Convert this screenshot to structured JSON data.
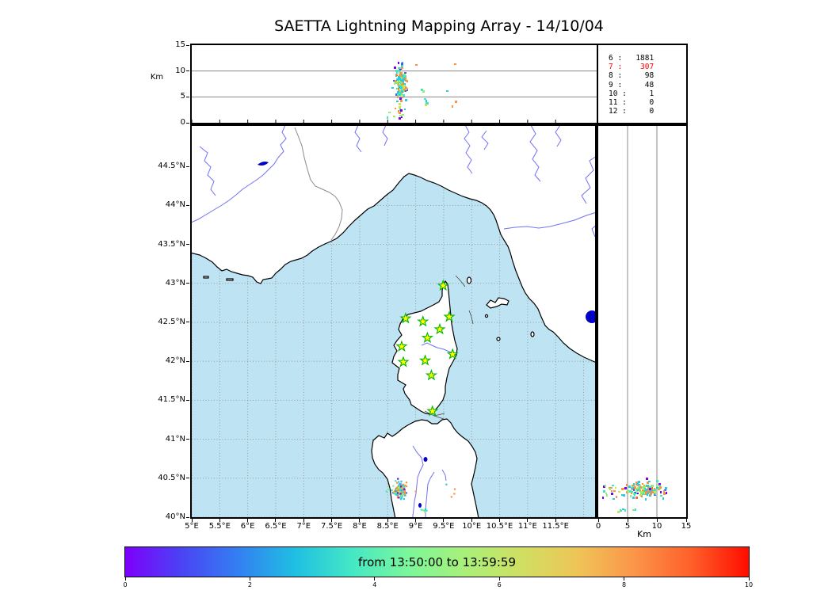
{
  "title": "SAETTA Lightning Mapping Array - 14/10/04",
  "colors": {
    "sea": "#BEE4F4",
    "land": "#FFFFFF",
    "coast": "#000000",
    "river": "#7171F5",
    "lake": "#0000C8",
    "grid_dotted": "#999999",
    "panel_grid": "#888888",
    "admin_border": "#8A8A8A",
    "station_fill": "#FFFF00",
    "station_stroke": "#00B400",
    "stats_highlight": "#FF0000",
    "text": "#000000"
  },
  "altitude_axis": {
    "label": "Km",
    "ticks": [
      "0",
      "5",
      "10",
      "15"
    ],
    "max_km": 15
  },
  "stats_panel": {
    "rows": [
      {
        "level": "6",
        "value": "1881",
        "text": "6 :   1881",
        "highlight": false
      },
      {
        "level": "7",
        "value": "307",
        "text": "7 :    307",
        "highlight": true
      },
      {
        "level": "8",
        "value": "98",
        "text": "8 :     98",
        "highlight": false
      },
      {
        "level": "9",
        "value": "48",
        "text": "9 :     48",
        "highlight": false
      },
      {
        "level": "10",
        "value": "1",
        "text": "10 :     1",
        "highlight": false
      },
      {
        "level": "11",
        "value": "0",
        "text": "11 :     0",
        "highlight": false
      },
      {
        "level": "12",
        "value": "0",
        "text": "12 :     0",
        "highlight": false
      }
    ]
  },
  "map_panel": {
    "lat_tick_labels": [
      "44.5°N",
      "44°N",
      "43.5°N",
      "43°N",
      "42.5°N",
      "42°N",
      "41.5°N",
      "41°N",
      "40.5°N",
      "40°N"
    ],
    "lat_tick_values": [
      44.5,
      44,
      43.5,
      43,
      42.5,
      42,
      41.5,
      41,
      40.5,
      40
    ],
    "lon_tick_labels": [
      "5°E",
      "5.5°E",
      "6°E",
      "6.5°E",
      "7°E",
      "7.5°E",
      "8°E",
      "8.5°E",
      "9°E",
      "9.5°E",
      "10°E",
      "10.5°E",
      "11°E",
      "11.5°E"
    ],
    "lon_tick_values": [
      5,
      5.5,
      6,
      6.5,
      7,
      7.5,
      8,
      8.5,
      9,
      9.5,
      10,
      10.5,
      11,
      11.5
    ],
    "lon_range": [
      5,
      12.205
    ],
    "lat_range": [
      40,
      45.02
    ]
  },
  "right_panel": {
    "tick_labels": [
      "0",
      "5",
      "10",
      "15"
    ],
    "tick_values": [
      0,
      5,
      10,
      15
    ],
    "label": "Km"
  },
  "colorbar": {
    "label": "from 13:50:00 to 13:59:59",
    "tick_labels": [
      "0",
      "2",
      "4",
      "6",
      "8",
      "10"
    ],
    "tick_values": [
      0,
      2,
      4,
      6,
      8,
      10
    ],
    "range": [
      0,
      10
    ],
    "gradient": [
      "#7D00FB",
      "#4A44F4",
      "#3380F2",
      "#1FC0E2",
      "#45E8C5",
      "#7CF69A",
      "#A9F07A",
      "#D0DF62",
      "#EFC457",
      "#FB9449",
      "#FE5F29",
      "#FF0C00"
    ]
  },
  "chart_data": [
    {
      "type": "scatter",
      "name": "altitude_vs_longitude",
      "ylabel": "Km",
      "x_range": [
        5,
        12.205
      ],
      "y_range": [
        0,
        15
      ],
      "y_tick_labels": [
        "0",
        "5",
        "10",
        "15"
      ],
      "gridlines_km": [
        5,
        10
      ],
      "note": "VHF source altitudes vs longitude; dense cluster near 8.7°E between 5 and 10 km"
    },
    {
      "type": "scatter",
      "name": "plan_view_map",
      "x_range": [
        5,
        12.205
      ],
      "y_range": [
        40,
        45.02
      ],
      "x_tick_labels": [
        "5°E",
        "5.5°E",
        "6°E",
        "6.5°E",
        "7°E",
        "7.5°E",
        "8°E",
        "8.5°E",
        "9°E",
        "9.5°E",
        "10°E",
        "10.5°E",
        "11°E",
        "11.5°E"
      ],
      "y_tick_labels": [
        "44.5°N",
        "44°N",
        "43.5°N",
        "43°N",
        "42.5°N",
        "42°N",
        "41.5°N",
        "41°N",
        "40.5°N",
        "40°N"
      ],
      "stations_lon_lat": [
        [
          9.49,
          42.97
        ],
        [
          8.82,
          42.55
        ],
        [
          9.13,
          42.51
        ],
        [
          9.6,
          42.57
        ],
        [
          9.43,
          42.41
        ],
        [
          9.21,
          42.3
        ],
        [
          8.75,
          42.19
        ],
        [
          9.66,
          42.09
        ],
        [
          8.78,
          41.99
        ],
        [
          9.17,
          42.01
        ],
        [
          9.28,
          41.82
        ],
        [
          9.3,
          41.36
        ]
      ],
      "flash_cluster": {
        "lon": 8.72,
        "lat": 40.35,
        "alt_km_range": [
          0.5,
          12
        ]
      }
    },
    {
      "type": "scatter",
      "name": "latitude_vs_altitude",
      "xlabel": "Km",
      "x_range": [
        0,
        15
      ],
      "y_range": [
        40,
        45.02
      ],
      "x_tick_labels": [
        "0",
        "5",
        "10",
        "15"
      ],
      "gridlines_km": [
        5,
        10
      ]
    },
    {
      "type": "table",
      "name": "source_counts",
      "pairs": [
        [
          "6",
          1881
        ],
        [
          "7",
          307
        ],
        [
          "8",
          98
        ],
        [
          "9",
          48
        ],
        [
          "10",
          1
        ],
        [
          "11",
          0
        ],
        [
          "12",
          0
        ]
      ],
      "highlight_row": "7"
    },
    {
      "type": "colorbar",
      "label": "from 13:50:00 to 13:59:59",
      "range": [
        0,
        10
      ],
      "tick_labels": [
        "0",
        "2",
        "4",
        "6",
        "8",
        "10"
      ]
    }
  ],
  "sources": {
    "seed": 20141004,
    "palette": [
      "#7B00F7",
      "#3E63F7",
      "#2BC8E3",
      "#3BE8C0",
      "#8DF06A",
      "#C8E84A",
      "#FB9240",
      "#FD6B28"
    ],
    "palette_weights": [
      0.06,
      0.04,
      0.24,
      0.13,
      0.2,
      0.05,
      0.22,
      0.06
    ],
    "clusters": [
      {
        "n": 150,
        "lon_mu": 8.72,
        "lon_sd": 0.05,
        "lat_mu": 40.355,
        "lat_sd": 0.045,
        "alt_mu": 7.7,
        "alt_sd": 1.5
      },
      {
        "n": 10,
        "lon_mu": 8.73,
        "lon_sd": 0.05,
        "lat_mu": 40.36,
        "lat_sd": 0.05,
        "alt_mu": 2.0,
        "alt_sd": 0.9
      },
      {
        "n": 7,
        "lon_mu": 9.12,
        "lon_sd": 0.04,
        "lat_mu": 40.09,
        "lat_sd": 0.02,
        "alt_mu": 4.2,
        "alt_sd": 1.1
      }
    ],
    "outliers": [
      [
        8.68,
        40.31,
        11.6,
        0
      ],
      [
        9.0,
        40.33,
        11.2,
        6
      ],
      [
        9.69,
        40.3,
        11.3,
        6
      ],
      [
        9.55,
        40.42,
        6.1,
        2
      ],
      [
        9.7,
        40.36,
        4.1,
        6
      ],
      [
        9.64,
        40.26,
        3.1,
        6
      ],
      [
        8.73,
        40.3,
        2.4,
        0
      ],
      [
        8.76,
        40.28,
        1.5,
        4
      ],
      [
        8.7,
        40.25,
        0.8,
        0
      ],
      [
        8.6,
        40.4,
        1.2,
        4
      ],
      [
        8.52,
        40.36,
        2.0,
        4
      ],
      [
        8.48,
        40.33,
        1.0,
        3
      ]
    ]
  }
}
